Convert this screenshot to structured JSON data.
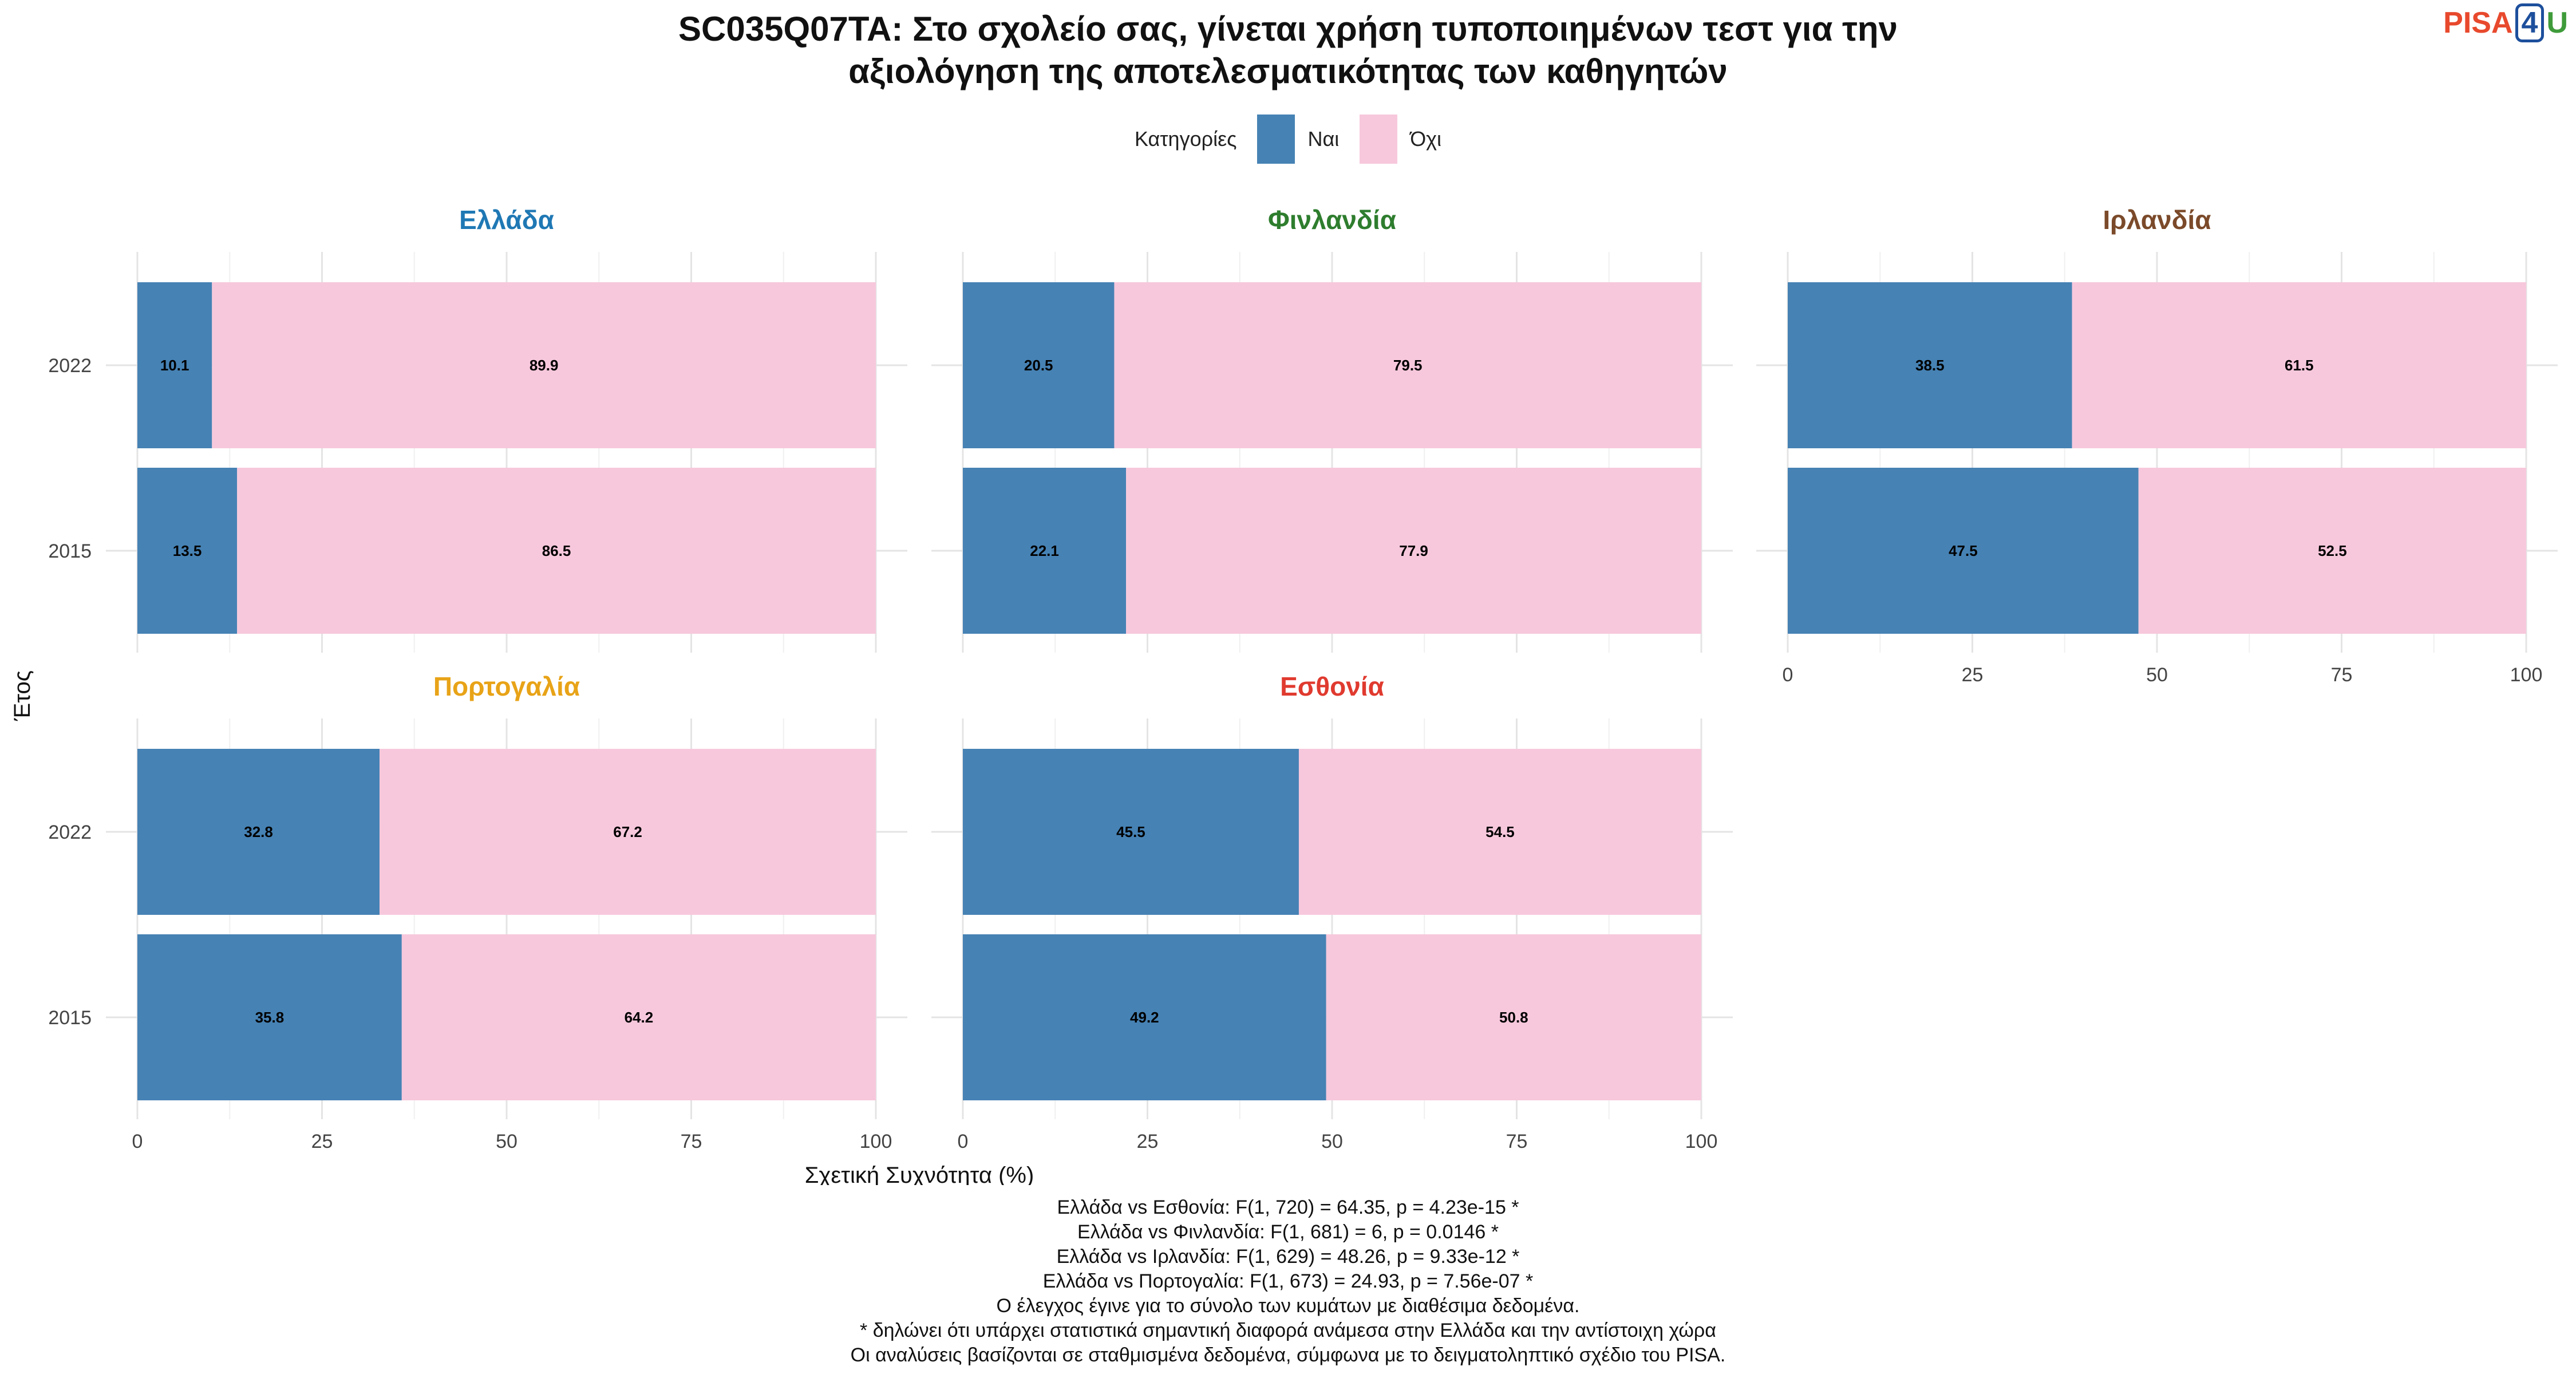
{
  "title_line1": "SC035Q07TA: Στο σχολείο σας, γίνεται χρήση τυποποιημένων τεστ για την",
  "title_line2": "αξιολόγηση της αποτελεσματικότητας των καθηγητών",
  "logo": {
    "part1": "PISA",
    "part2": "4",
    "part3": "U"
  },
  "legend": {
    "title": "Κατηγορίες",
    "items": [
      {
        "label": "Ναι",
        "color": "#4682b4"
      },
      {
        "label": "Όχι",
        "color": "#f7c8dc"
      }
    ]
  },
  "notes": [
    "Ελλάδα vs Εσθονία: F(1, 720) = 64.35, p = 4.23e-15 *",
    "Ελλάδα vs Φινλανδία: F(1, 681) = 6, p = 0.0146 *",
    "Ελλάδα vs Ιρλανδία: F(1, 629) = 48.26, p = 9.33e-12 *",
    "Ελλάδα vs Πορτογαλία: F(1, 673) = 24.93, p = 7.56e-07 *",
    "Ο έλεγχος έγινε για το σύνολο των κυμάτων με διαθέσιμα δεδομένα.",
    "* δηλώνει ότι υπάρχει στατιστικά σημαντική διαφορά ανάμεσα στην Ελλάδα και την αντίστοιχη χώρα",
    "Οι αναλύσεις βασίζονται σε σταθμισμένα δεδομένα, σύμφωνα με το δειγματοληπτικό σχέδιο του PISA."
  ],
  "chart_data": {
    "type": "bar",
    "orientation": "horizontal",
    "stacked": true,
    "xlabel": "Σχετική Συχνότητα (%)",
    "ylabel": "Έτος",
    "xlim": [
      0,
      100
    ],
    "xticks": [
      "0",
      "25",
      "50",
      "75",
      "100"
    ],
    "categories": [
      "2022",
      "2015"
    ],
    "series_names": [
      "Ναι",
      "Όχι"
    ],
    "series_colors": [
      "#4682b4",
      "#f7c8dc"
    ],
    "panels": [
      {
        "title": "Ελλάδα",
        "title_color": "#1f78b4",
        "values": {
          "2022": [
            10.1,
            89.9
          ],
          "2015": [
            13.5,
            86.5
          ]
        }
      },
      {
        "title": "Φινλανδία",
        "title_color": "#2e7d2e",
        "values": {
          "2022": [
            20.5,
            79.5
          ],
          "2015": [
            22.1,
            77.9
          ]
        }
      },
      {
        "title": "Ιρλανδία",
        "title_color": "#7b4a2a",
        "values": {
          "2022": [
            38.5,
            61.5
          ],
          "2015": [
            47.5,
            52.5
          ]
        }
      },
      {
        "title": "Πορτογαλία",
        "title_color": "#e8a317",
        "values": {
          "2022": [
            32.8,
            67.2
          ],
          "2015": [
            35.8,
            64.2
          ]
        }
      },
      {
        "title": "Εσθονία",
        "title_color": "#e03a2f",
        "values": {
          "2022": [
            45.5,
            54.5
          ],
          "2015": [
            49.2,
            50.8
          ]
        }
      }
    ]
  }
}
